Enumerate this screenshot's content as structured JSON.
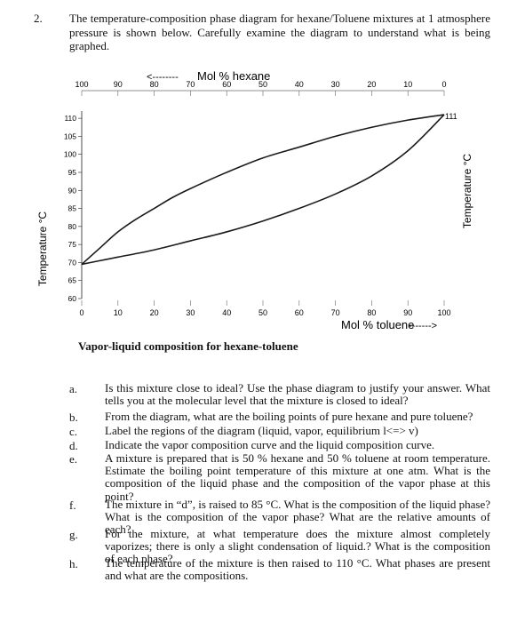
{
  "question": {
    "number": "2.",
    "intro": "The temperature-composition phase diagram for hexane/Toluene mixtures at 1 atmosphere pressure is shown below. Carefully examine the diagram to understand what is being graphed."
  },
  "chart_data": {
    "type": "line",
    "top_axis_label": "Mol % hexane",
    "top_axis_arrow": "<--------",
    "bottom_axis_label": "Mol % toluene",
    "bottom_axis_arrow": "------->",
    "ylabel": "Temperature °C",
    "ylabel_right": "Temperature °C",
    "xlim": [
      0,
      100
    ],
    "ylim": [
      60,
      112
    ],
    "top_ticks": [
      "100",
      "90",
      "80",
      "70",
      "60",
      "50",
      "40",
      "30",
      "20",
      "10",
      "0"
    ],
    "bottom_ticks": [
      "0",
      "10",
      "20",
      "30",
      "40",
      "50",
      "60",
      "70",
      "80",
      "90",
      "100"
    ],
    "y_ticks": [
      "110",
      "105",
      "100",
      "95",
      "90",
      "85",
      "80",
      "75",
      "70",
      "65",
      "60"
    ],
    "right_annotation": "111",
    "series": [
      {
        "x": [
          0,
          5,
          10,
          15,
          20,
          25,
          30,
          40,
          50,
          60,
          70,
          80,
          90,
          100
        ],
        "y": [
          69.5,
          74,
          78.5,
          82,
          85,
          88,
          90.5,
          95,
          99,
          102,
          105,
          107.5,
          109.5,
          111
        ]
      },
      {
        "x": [
          0,
          5,
          10,
          20,
          30,
          40,
          50,
          60,
          70,
          80,
          90,
          100
        ],
        "y": [
          69.5,
          70.5,
          71.5,
          73.5,
          76,
          78.5,
          81.5,
          85,
          89,
          94,
          101,
          111
        ]
      }
    ],
    "line_color": "#1a1a1a",
    "grid": false
  },
  "caption": "Vapor-liquid composition for hexane-toluene",
  "questions": [
    {
      "letter": "a.",
      "text": "Is this mixture close to ideal? Use the phase diagram to justify your answer. What tells you at the molecular level that the mixture is closed to ideal?"
    },
    {
      "letter": "b.",
      "text": "From the diagram, what are the boiling points of pure hexane and pure toluene?"
    },
    {
      "letter": "c.",
      "text": "Label the regions of the diagram (liquid, vapor, equilibrium l<=> v)"
    },
    {
      "letter": "d.",
      "text": "Indicate the vapor composition curve and the liquid composition curve."
    },
    {
      "letter": "e.",
      "text": "A mixture is prepared that is 50 % hexane and 50 % toluene at room temperature. Estimate the boiling point temperature of this mixture at one atm. What is the composition of the liquid phase and the composition of the vapor phase at this point?"
    },
    {
      "letter": "f.",
      "text": "The mixture in “d”, is raised to 85 °C. What is the composition of the liquid phase? What is the composition of the vapor phase? What are the relative amounts of each?"
    },
    {
      "letter": "g.",
      "text": "For the mixture, at what temperature does the mixture almost completely vaporizes; there is only a slight condensation of liquid.? What is the composition of each phase?"
    },
    {
      "letter": "h.",
      "text": "The temperature of the mixture is then raised to 110 °C. What phases are present and what are the compositions."
    }
  ]
}
